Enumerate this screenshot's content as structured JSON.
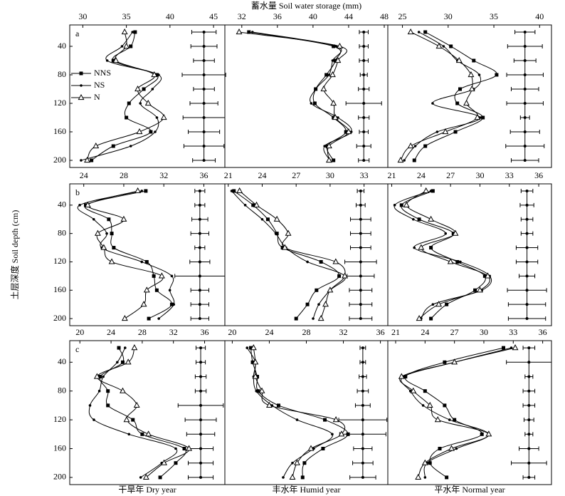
{
  "chart_data": [
    {
      "type": "line",
      "label": "a",
      "legend": true,
      "y_inverted": true,
      "categories": [
        20,
        40,
        60,
        80,
        100,
        120,
        140,
        160,
        180,
        200
      ],
      "xlim": [
        28.5,
        46.3
      ],
      "xticks": [
        30,
        35,
        40,
        45
      ],
      "ylim": [
        10,
        210
      ],
      "yticks": [
        40,
        80,
        120,
        160,
        200
      ],
      "series": [
        {
          "name": "NNS",
          "marker": "square",
          "color": "#000",
          "values": [
            36,
            35.5,
            33.5,
            38.5,
            37,
            35.3,
            35,
            37.8,
            33.5,
            31
          ]
        },
        {
          "name": "NS",
          "marker": "dot",
          "color": "#000",
          "values": [
            35.7,
            34.5,
            32.8,
            38.7,
            38,
            36.6,
            38.5,
            38.3,
            35.5,
            29.8
          ]
        },
        {
          "name": "N",
          "marker": "triangle",
          "color": "#000",
          "values": [
            34.8,
            35,
            33.8,
            38.2,
            36.3,
            37.5,
            39.3,
            36.5,
            31.5,
            30.5
          ]
        }
      ],
      "error_bars": {
        "x": 43.9,
        "errors": [
          1.4,
          1.5,
          1.2,
          2.5,
          1.2,
          1.6,
          2.4,
          1.8,
          2.3,
          1.3
        ]
      }
    },
    {
      "type": "line",
      "title": "蓄水量 Soil water storage (mm)",
      "y_inverted": true,
      "categories": [
        20,
        40,
        60,
        80,
        100,
        120,
        140,
        160,
        180,
        200
      ],
      "xlim": [
        30.1,
        48.4
      ],
      "xticks": [
        32,
        36,
        40,
        44,
        48
      ],
      "ylim": [
        10,
        210
      ],
      "series": [
        {
          "marker": "square",
          "color": "#000",
          "values": [
            32.8,
            42.3,
            42.5,
            41.5,
            40.3,
            40.2,
            42.3,
            43.7,
            41.6,
            42.3
          ]
        },
        {
          "marker": "dot",
          "color": "#000",
          "values": [
            33.2,
            42.6,
            42.2,
            41.8,
            40.3,
            39.8,
            42.8,
            44.3,
            41.3,
            41.9
          ]
        },
        {
          "marker": "triangle",
          "color": "#000",
          "values": [
            31.7,
            43.0,
            42.8,
            42.2,
            41.2,
            42.3,
            42.5,
            44.0,
            41.8,
            41.8
          ]
        }
      ],
      "error_bars": {
        "x": 45.7,
        "errors": [
          0.5,
          0.5,
          0.5,
          0.4,
          0.6,
          2.0,
          0.6,
          0.5,
          0.8,
          0.6
        ]
      }
    },
    {
      "type": "line",
      "y_inverted": true,
      "categories": [
        20,
        40,
        60,
        80,
        100,
        120,
        140,
        160,
        180,
        200
      ],
      "xlim": [
        23.4,
        41.3
      ],
      "xticks": [
        25,
        30,
        35,
        40
      ],
      "ylim": [
        10,
        210
      ],
      "series": [
        {
          "marker": "square",
          "color": "#000",
          "values": [
            27.5,
            30.3,
            32.8,
            35.3,
            31.3,
            31.0,
            33.8,
            30.8,
            27.5,
            26.3
          ]
        },
        {
          "marker": "dot",
          "color": "#000",
          "values": [
            26.8,
            29.5,
            31.0,
            33.4,
            32.8,
            28.3,
            33.5,
            28.8,
            26.4,
            25.2
          ]
        },
        {
          "marker": "triangle",
          "color": "#000",
          "values": [
            25.9,
            29,
            31.2,
            32.5,
            32.6,
            32.0,
            33.2,
            29.7,
            25.9,
            24.8
          ]
        }
      ],
      "error_bars": {
        "x": 38.4,
        "errors": [
          1.1,
          1.9,
          1.2,
          2.0,
          1.5,
          2.0,
          0.5,
          1.6,
          2.1,
          1.5
        ]
      }
    },
    {
      "type": "line",
      "label": "b",
      "ylabel": "土层深度 Soil depth (cm)",
      "y_inverted": true,
      "categories": [
        20,
        40,
        60,
        80,
        100,
        120,
        140,
        160,
        180,
        200
      ],
      "xlim": [
        22.6,
        38.1
      ],
      "xticks": [
        24,
        28,
        32,
        36
      ],
      "ylim": [
        10,
        210
      ],
      "yticks": [
        40,
        80,
        120,
        160,
        200
      ],
      "series": [
        {
          "marker": "square",
          "color": "#000",
          "values": [
            30.2,
            24.2,
            26.5,
            26.8,
            27.0,
            30.3,
            31.0,
            31.3,
            32.8,
            30.5
          ]
        },
        {
          "marker": "dot",
          "color": "#000",
          "values": [
            29.8,
            23.6,
            25.0,
            26.3,
            25.8,
            29.8,
            32.8,
            32.6,
            33.0,
            31.5
          ]
        },
        {
          "marker": "triangle",
          "color": "#000",
          "values": [
            29.4,
            24.4,
            28.0,
            25.4,
            26.0,
            26.8,
            31.8,
            30.3,
            30.0,
            28.1
          ]
        }
      ],
      "error_bars": {
        "x": 35.6,
        "errors": [
          0.5,
          0.5,
          0.8,
          0.9,
          0.5,
          1.0,
          2.5,
          0.9,
          0.9,
          0.9
        ]
      }
    },
    {
      "type": "line",
      "y_inverted": true,
      "categories": [
        20,
        40,
        60,
        80,
        100,
        120,
        140,
        160,
        180,
        200
      ],
      "xlim": [
        20.7,
        35.1
      ],
      "xticks": [
        21,
        24,
        27,
        30,
        33
      ],
      "ylim": [
        10,
        210
      ],
      "series": [
        {
          "marker": "square",
          "color": "#000",
          "values": [
            21.5,
            23.2,
            24.5,
            25.3,
            25.8,
            29.2,
            30.8,
            28.8,
            28.0,
            27.0
          ]
        },
        {
          "marker": "dot",
          "color": "#000",
          "values": [
            21.3,
            22.5,
            24.0,
            25.2,
            26.1,
            28.0,
            31.3,
            30.0,
            29.0,
            28.5
          ]
        },
        {
          "marker": "triangle",
          "color": "#000",
          "values": [
            22.0,
            23.5,
            25.3,
            26.3,
            26.0,
            30.5,
            31.3,
            30.0,
            29.6,
            29.2
          ]
        }
      ],
      "error_bars": {
        "x": 32.7,
        "errors": [
          0.3,
          0.4,
          0.9,
          0.9,
          0.9,
          1.4,
          1.2,
          1.0,
          1.0,
          1.0
        ]
      }
    },
    {
      "type": "line",
      "y_inverted": true,
      "categories": [
        20,
        40,
        60,
        80,
        100,
        120,
        140,
        160,
        180,
        200
      ],
      "xlim": [
        20.6,
        37.3
      ],
      "xticks": [
        21,
        24,
        27,
        30,
        33,
        36
      ],
      "ylim": [
        10,
        210
      ],
      "series": [
        {
          "marker": "square",
          "color": "#000",
          "values": [
            25.2,
            22.0,
            23.8,
            27.3,
            25.0,
            27.7,
            30.5,
            29.5,
            26.6,
            25.0
          ]
        },
        {
          "marker": "dot",
          "color": "#000",
          "values": [
            25.0,
            21.3,
            23.2,
            26.5,
            23.3,
            28.0,
            31.0,
            30.2,
            25.2,
            24.0
          ]
        },
        {
          "marker": "triangle",
          "color": "#000",
          "values": [
            24.5,
            22.5,
            25.0,
            27.5,
            24.0,
            27.0,
            30.8,
            30.0,
            25.8,
            23.8
          ]
        }
      ],
      "error_bars": {
        "x": 34.8,
        "errors": [
          0.6,
          0.7,
          0.6,
          0.6,
          1.1,
          1.1,
          0.8,
          2.0,
          1.9,
          1.9
        ]
      }
    },
    {
      "type": "line",
      "label": "c",
      "xlabel": "干旱年 Dry year",
      "y_inverted": true,
      "categories": [
        20,
        40,
        60,
        80,
        100,
        120,
        140,
        160,
        180,
        200
      ],
      "xlim": [
        18.7,
        38.6
      ],
      "xticks": [
        20,
        24,
        28,
        32,
        36
      ],
      "ylim": [
        10,
        210
      ],
      "yticks": [
        40,
        80,
        120,
        160,
        200
      ],
      "series": [
        {
          "marker": "square",
          "color": "#000",
          "values": [
            25.0,
            25.5,
            22.6,
            23.6,
            23.6,
            26.8,
            28.0,
            33.4,
            32.3,
            30.3
          ]
        },
        {
          "marker": "dot",
          "color": "#000",
          "values": [
            25.8,
            24.8,
            23.0,
            22.5,
            21.3,
            21.8,
            26.3,
            32.3,
            30.5,
            27.8
          ]
        },
        {
          "marker": "triangle",
          "color": "#000",
          "values": [
            27.0,
            26.2,
            22.2,
            25.5,
            27.3,
            26.0,
            28.8,
            34.0,
            30.8,
            28.5
          ]
        }
      ],
      "error_bars": {
        "x": 35.5,
        "errors": [
          0.6,
          0.6,
          0.7,
          0.7,
          2.9,
          2.0,
          1.8,
          1.6,
          1.6,
          1.6
        ]
      }
    },
    {
      "type": "line",
      "xlabel": "丰水年 Humid year",
      "y_inverted": true,
      "categories": [
        20,
        40,
        60,
        80,
        100,
        120,
        140,
        160,
        180,
        200
      ],
      "xlim": [
        19.2,
        36.8
      ],
      "xticks": [
        20,
        24,
        28,
        32,
        36
      ],
      "ylim": [
        10,
        210
      ],
      "series": [
        {
          "marker": "square",
          "color": "#000",
          "values": [
            22.0,
            22.2,
            22.7,
            22.8,
            25.0,
            30.0,
            32.5,
            29.8,
            27.8,
            27.6
          ]
        },
        {
          "marker": "dot",
          "color": "#000",
          "values": [
            21.6,
            22.5,
            22.3,
            22.6,
            24.3,
            27.0,
            30.8,
            28.8,
            26.5,
            25.5
          ]
        },
        {
          "marker": "triangle",
          "color": "#000",
          "values": [
            22.3,
            22.5,
            22.5,
            23.2,
            24.0,
            31.2,
            31.8,
            28.5,
            27.0,
            26.5
          ]
        }
      ],
      "error_bars": {
        "x": 34.1,
        "errors": [
          0.3,
          0.3,
          0.4,
          0.6,
          0.8,
          2.6,
          2.5,
          1.0,
          1.1,
          1.4
        ]
      }
    },
    {
      "type": "line",
      "xlabel": "平水年 Normal year",
      "y_inverted": true,
      "categories": [
        20,
        40,
        60,
        80,
        100,
        120,
        140,
        160,
        180,
        200
      ],
      "xlim": [
        20.2,
        36.9
      ],
      "xticks": [
        21,
        24,
        27,
        30,
        33,
        36
      ],
      "ylim": [
        10,
        210
      ],
      "series": [
        {
          "marker": "square",
          "color": "#000",
          "values": [
            32.0,
            26.0,
            22.0,
            24.0,
            26.0,
            27.0,
            29.8,
            25.5,
            24.5,
            26.2
          ]
        },
        {
          "marker": "dot",
          "color": "#000",
          "values": [
            32.8,
            27.0,
            21.8,
            22.5,
            23.8,
            26.5,
            30.5,
            27.2,
            24.2,
            24.0
          ]
        },
        {
          "marker": "triangle",
          "color": "#000",
          "values": [
            33.2,
            27.0,
            21.6,
            22.8,
            24.5,
            25.3,
            30.5,
            26.7,
            24.0,
            23.3
          ]
        }
      ],
      "error_bars": {
        "x": 34.6,
        "errors": [
          0.6,
          2.3,
          0.4,
          0.6,
          0.6,
          0.5,
          0.4,
          1.0,
          1.8,
          0.6
        ]
      }
    }
  ]
}
